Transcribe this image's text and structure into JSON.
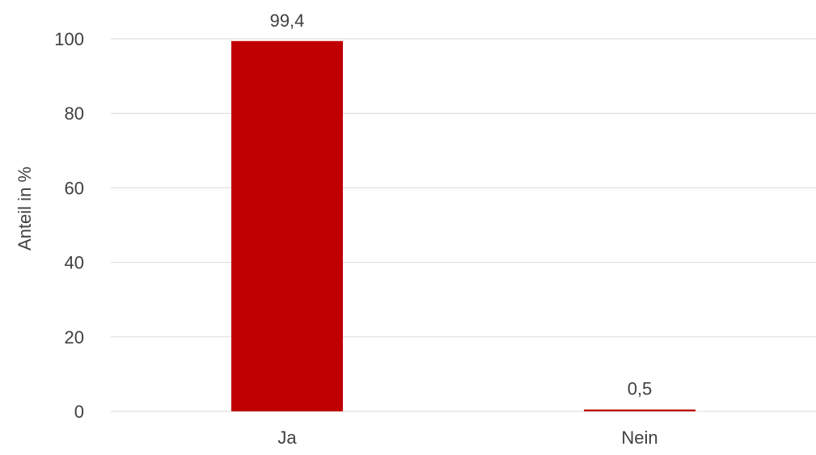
{
  "chart_data": {
    "type": "bar",
    "categories": [
      "Ja",
      "Nein"
    ],
    "values": [
      99.4,
      0.5
    ],
    "value_labels": [
      "99,4",
      "0,5"
    ],
    "title": "",
    "xlabel": "",
    "ylabel": "Anteil in %",
    "ylim": [
      0,
      100
    ],
    "yticks": [
      0,
      20,
      40,
      60,
      80,
      100
    ],
    "ytick_labels": [
      "0",
      "20",
      "40",
      "60",
      "80",
      "100"
    ],
    "grid": true,
    "colors": {
      "bar": "#c00000",
      "grid": "#d9d9d9",
      "text": "#404040"
    }
  }
}
